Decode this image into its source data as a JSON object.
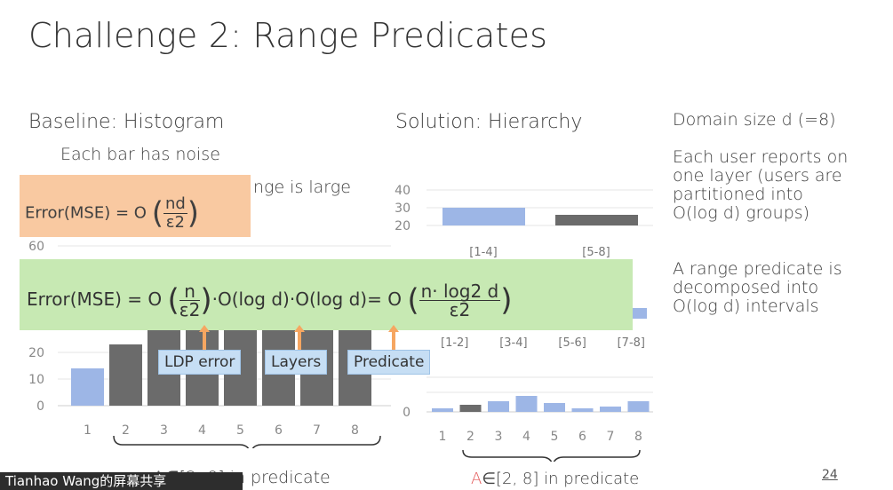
{
  "title": "Challenge 2: Range Predicates",
  "left": {
    "heading": "Baseline: Histogram",
    "line1": "Each bar has noise",
    "line2_partial": "nge is large",
    "chart_data": {
      "type": "bar",
      "categories": [
        "1",
        "2",
        "3",
        "4",
        "5",
        "6",
        "7",
        "8"
      ],
      "values": [
        14,
        23,
        45,
        45,
        45,
        45,
        45,
        45
      ],
      "yticks": [
        "0",
        "10",
        "20",
        "60"
      ],
      "colors": [
        "#9db6e6",
        "#6b6b6b",
        "#6b6b6b",
        "#6b6b6b",
        "#6b6b6b",
        "#6b6b6b",
        "#6b6b6b",
        "#6b6b6b"
      ]
    },
    "range_text": "A∈[2, 8] in predicate"
  },
  "middle": {
    "heading": "Solution: Hierarchy",
    "top_chart": {
      "type": "bar",
      "categories": [
        "[1-4]",
        "[5-8]"
      ],
      "values": [
        30,
        26
      ],
      "yticks": [
        "20",
        "30",
        "40"
      ],
      "colors": [
        "#9db6e6",
        "#6b6b6b"
      ]
    },
    "mid_labels": [
      "[1-2]",
      "[3-4]",
      "[5-6]",
      "[7-8]"
    ],
    "bottom_chart": {
      "type": "bar",
      "categories": [
        "1",
        "2",
        "3",
        "4",
        "5",
        "6",
        "7",
        "8"
      ],
      "values": [
        2,
        4,
        6,
        9,
        5,
        2,
        3,
        6
      ],
      "yticks": [
        "0"
      ],
      "colors": [
        "#9db6e6",
        "#6b6b6b",
        "#9db6e6",
        "#9db6e6",
        "#9db6e6",
        "#9db6e6",
        "#9db6e6",
        "#9db6e6"
      ]
    },
    "range_text": "A∈[2, 8] in predicate"
  },
  "right": {
    "line1": "Domain size d (=8)",
    "para1": [
      "Each user reports on",
      "one layer (users are",
      "partitioned into",
      "O(log d) groups)"
    ],
    "para2": [
      "A range predicate is",
      "decomposed into",
      "O(log d) intervals"
    ]
  },
  "orange_formula": {
    "prefix": "Error(MSE) = O",
    "num": "nd",
    "den": "ε2"
  },
  "green_formula": {
    "prefix": "Error(MSE) = O",
    "f1num": "n",
    "f1den": "ε2",
    "mid": "·O(log d)·O(log d)= O",
    "f2num": "n· log2 d",
    "f2den": "ε2"
  },
  "callouts": {
    "ldp": "LDP error",
    "layers": "Layers",
    "predicate": "Predicate"
  },
  "banner": "Tianhao Wang的屏幕共享",
  "page_number": "24"
}
